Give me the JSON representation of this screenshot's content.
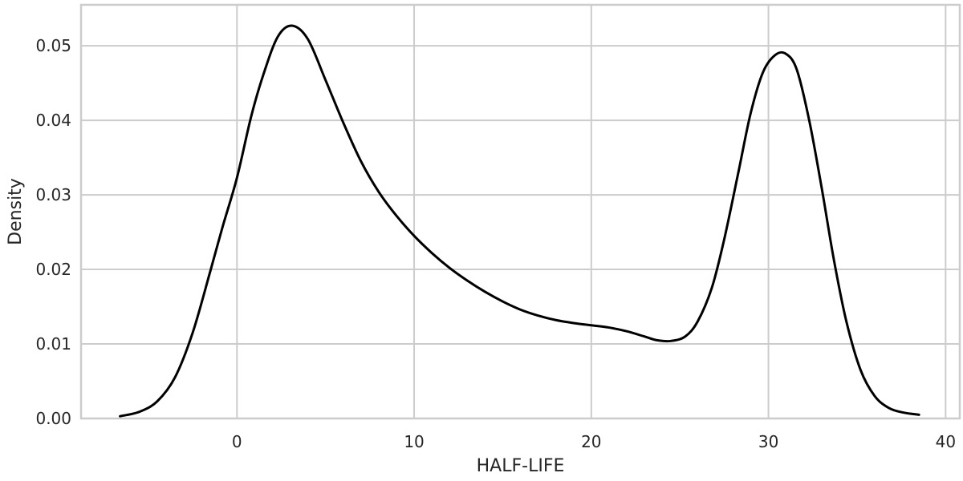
{
  "chart_data": {
    "type": "line",
    "title": "",
    "xlabel": "HALF-LIFE",
    "ylabel": "Density",
    "xlim": [
      -8.8,
      40.8
    ],
    "ylim": [
      0.0,
      0.0555
    ],
    "xticks": [
      0,
      10,
      20,
      30,
      40
    ],
    "yticks": [
      0.0,
      0.01,
      0.02,
      0.03,
      0.04,
      0.05
    ],
    "xtick_labels": [
      "0",
      "10",
      "20",
      "30",
      "40"
    ],
    "ytick_labels": [
      "0.00",
      "0.01",
      "0.02",
      "0.03",
      "0.04",
      "0.05"
    ],
    "grid": true,
    "legend": null,
    "series": [
      {
        "color": "#000000",
        "x": [
          -6.6,
          -5.5,
          -4.5,
          -3.5,
          -2.5,
          -1.5,
          -0.8,
          0.0,
          0.8,
          1.5,
          2.3,
          3.1,
          4.0,
          5.0,
          6.0,
          7.0,
          8.0,
          9.0,
          10.0,
          11.0,
          12.0,
          13.0,
          14.0,
          15.0,
          16.0,
          17.0,
          18.0,
          19.0,
          20.0,
          21.0,
          22.0,
          23.0,
          23.7,
          24.5,
          25.3,
          26.0,
          26.8,
          27.5,
          28.3,
          29.0,
          29.7,
          30.4,
          31.0,
          31.6,
          32.3,
          33.0,
          33.7,
          34.4,
          35.2,
          36.0,
          36.8,
          37.6,
          38.5
        ],
        "y": [
          0.0003,
          0.0009,
          0.0023,
          0.0055,
          0.0115,
          0.0198,
          0.0258,
          0.0323,
          0.0405,
          0.0462,
          0.0512,
          0.0527,
          0.0509,
          0.0454,
          0.0397,
          0.0345,
          0.0304,
          0.0272,
          0.0245,
          0.0222,
          0.0202,
          0.0185,
          0.017,
          0.0157,
          0.0146,
          0.0138,
          0.0132,
          0.0128,
          0.0125,
          0.0122,
          0.0117,
          0.011,
          0.0105,
          0.0104,
          0.011,
          0.013,
          0.0175,
          0.024,
          0.033,
          0.041,
          0.0465,
          0.0488,
          0.0489,
          0.0468,
          0.04,
          0.031,
          0.0212,
          0.013,
          0.0065,
          0.003,
          0.0014,
          0.0008,
          0.0005
        ]
      }
    ]
  }
}
